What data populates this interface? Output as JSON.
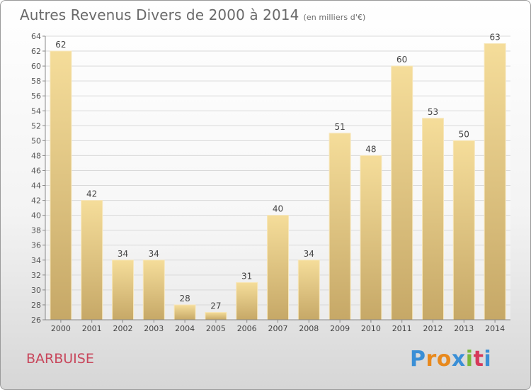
{
  "chart_data": {
    "type": "bar",
    "title": "Autres Revenus Divers de 2000 à 2014",
    "subtitle": "(en milliers d'€)",
    "categories": [
      "2000",
      "2001",
      "2002",
      "2003",
      "2004",
      "2005",
      "2006",
      "2007",
      "2008",
      "2009",
      "2010",
      "2011",
      "2012",
      "2013",
      "2014"
    ],
    "values": [
      62,
      42,
      34,
      34,
      28,
      27,
      31,
      40,
      34,
      51,
      48,
      60,
      53,
      50,
      63
    ],
    "ylim": [
      26,
      64
    ],
    "ytick_step": 2,
    "grid": true,
    "bar_color": "#e8cc86"
  },
  "location": "BARBUISE",
  "logo": {
    "text": "Proxiti",
    "letters": [
      "P",
      "r",
      "o",
      "x",
      "i",
      "t",
      "i"
    ],
    "colors": [
      "#3a8fd6",
      "#e8891d",
      "#e8891d",
      "#3a8fd6",
      "#7ab83a",
      "#d63a5a",
      "#3a8fd6"
    ]
  }
}
